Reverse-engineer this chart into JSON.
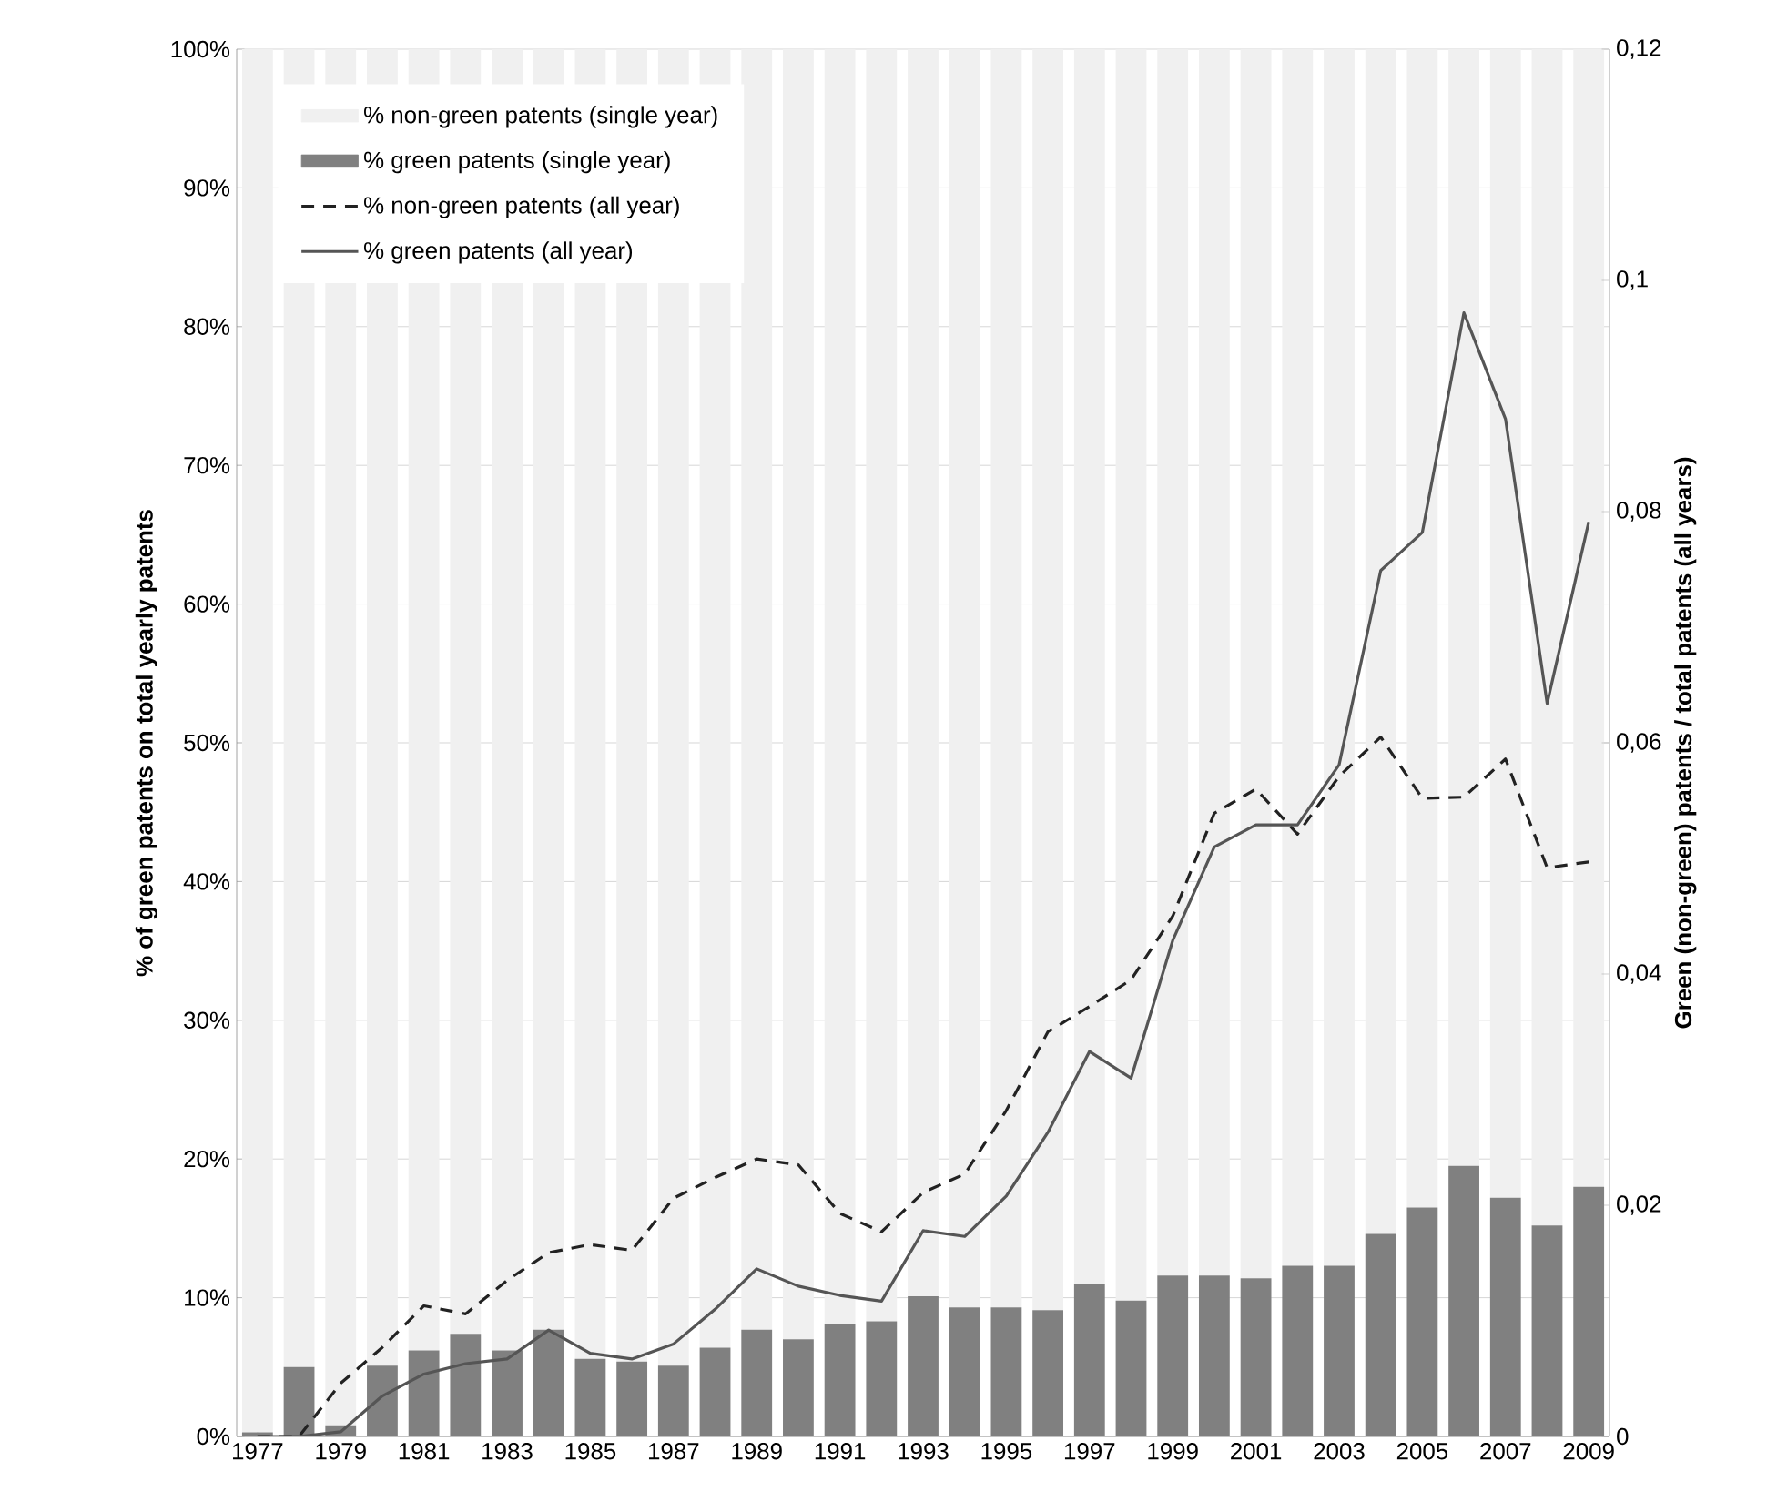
{
  "chart_data": {
    "type": "bar",
    "stacked": true,
    "ylabel": "% of green patents on total yearly patents",
    "y2label": "Green (non-green) patents / total patents (all years)",
    "categories": [
      "1977",
      null,
      "1979",
      null,
      "1981",
      null,
      "1983",
      null,
      "1985",
      null,
      "1987",
      null,
      "1989",
      null,
      "1991",
      null,
      "1993",
      null,
      "1995",
      null,
      "1997",
      null,
      "1999",
      null,
      "2001",
      null,
      "2003",
      null,
      "2005",
      null,
      "2007",
      null,
      "2009"
    ],
    "series": [
      {
        "name": "% green patents (single year)",
        "type": "bar",
        "color": "#808080",
        "values": [
          0.3,
          5.0,
          0.8,
          5.1,
          6.2,
          7.4,
          6.2,
          7.7,
          5.6,
          5.4,
          5.1,
          6.4,
          7.7,
          7.0,
          8.1,
          8.3,
          10.1,
          9.3,
          9.3,
          9.1,
          11.0,
          9.8,
          11.6,
          11.6,
          11.4,
          12.3,
          12.3,
          14.6,
          16.5,
          19.5,
          17.2,
          15.2,
          18.0
        ]
      },
      {
        "name": "% non-green patents (single year)",
        "type": "bar",
        "color": "#f0f0f0",
        "values": [
          99.7,
          95.0,
          99.2,
          94.9,
          93.8,
          92.6,
          93.8,
          92.3,
          94.4,
          94.6,
          94.9,
          93.6,
          92.3,
          93.0,
          91.9,
          91.7,
          89.9,
          90.7,
          90.7,
          90.9,
          89.0,
          90.2,
          88.4,
          88.4,
          88.6,
          87.7,
          87.7,
          85.4,
          83.5,
          80.5,
          82.8,
          84.8,
          82.0
        ]
      },
      {
        "name": "% non-green patents (all year)",
        "type": "line",
        "axis": "y2",
        "line_style": "dashed",
        "color": "#222222",
        "values": [
          0,
          0,
          0.0046,
          0.0077,
          0.0113,
          0.0106,
          0.0135,
          0.0159,
          0.0166,
          0.0161,
          0.0206,
          0.0224,
          0.024,
          0.0235,
          0.0193,
          0.0177,
          0.0211,
          0.0227,
          0.0282,
          0.035,
          0.0372,
          0.0395,
          0.045,
          0.0539,
          0.056,
          0.0521,
          0.0571,
          0.0605,
          0.0552,
          0.0553,
          0.0586,
          0.0492,
          0.0497
        ]
      },
      {
        "name": "% green patents (all year)",
        "type": "line",
        "axis": "y2",
        "line_style": "solid",
        "color": "#555555",
        "values": [
          0,
          0,
          0.0004,
          0.0035,
          0.0054,
          0.0063,
          0.0067,
          0.0092,
          0.0072,
          0.0067,
          0.008,
          0.011,
          0.0145,
          0.013,
          0.0122,
          0.0117,
          0.0178,
          0.0173,
          0.0208,
          0.0263,
          0.0333,
          0.031,
          0.0429,
          0.051,
          0.0529,
          0.0529,
          0.0581,
          0.0749,
          0.0782,
          0.0972,
          0.088,
          0.0634,
          0.0791
        ]
      }
    ],
    "ylim": [
      0,
      100
    ],
    "yticks": [
      {
        "value": 0,
        "label": "0%"
      },
      {
        "value": 10,
        "label": "10%"
      },
      {
        "value": 20,
        "label": "20%"
      },
      {
        "value": 30,
        "label": "30%"
      },
      {
        "value": 40,
        "label": "40%"
      },
      {
        "value": 50,
        "label": "50%"
      },
      {
        "value": 60,
        "label": "60%"
      },
      {
        "value": 70,
        "label": "70%"
      },
      {
        "value": 80,
        "label": "80%"
      },
      {
        "value": 90,
        "label": "90%"
      },
      {
        "value": 100,
        "label": "100%"
      }
    ],
    "y2lim": [
      0,
      0.12
    ],
    "y2ticks": [
      0,
      {
        "value": 0.02,
        "label": "0,02"
      },
      {
        "value": 0.04,
        "label": "0,04"
      },
      {
        "value": 0.06,
        "label": "0,06"
      },
      {
        "value": 0.08,
        "label": "0,08"
      },
      {
        "value": 0.1,
        "label": "0,1"
      },
      {
        "value": 0.12,
        "label": "0,12"
      }
    ],
    "grid": "y",
    "legend": "top left"
  }
}
